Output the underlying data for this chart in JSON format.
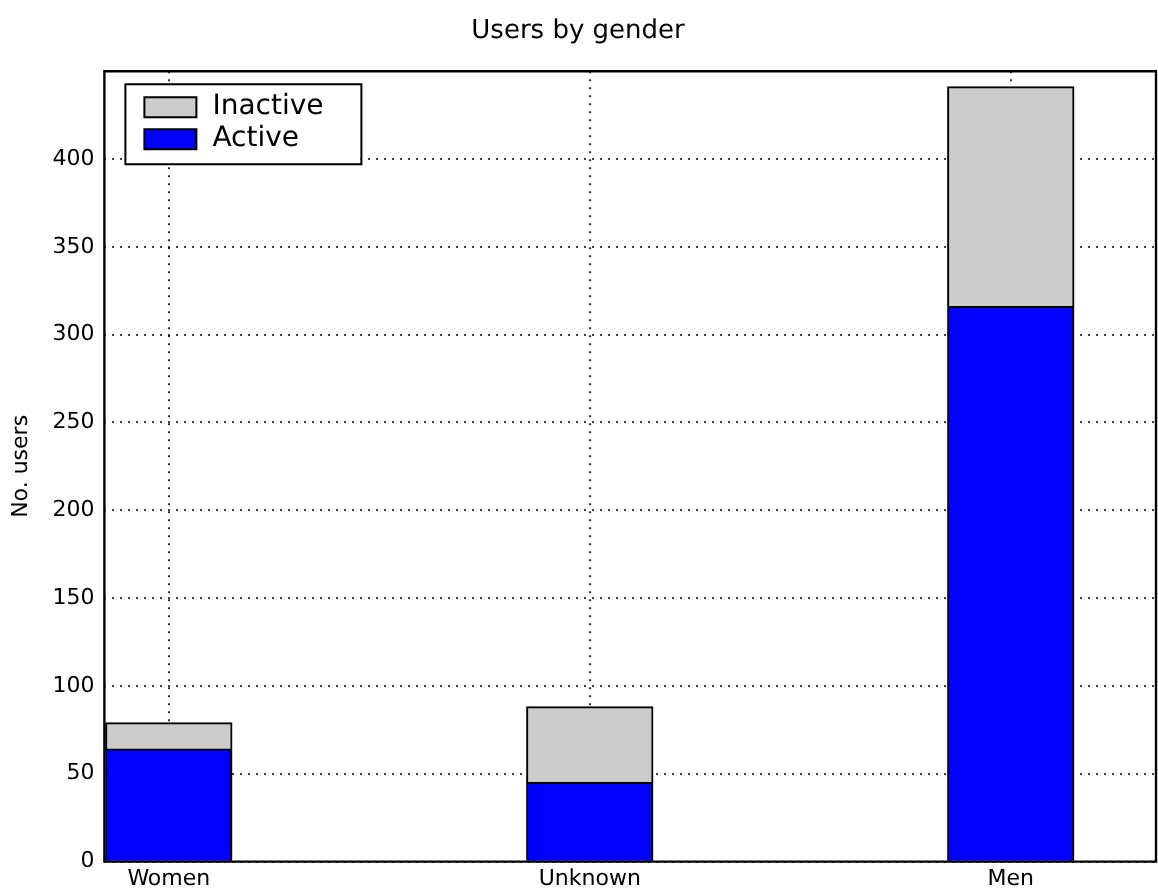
{
  "chart_data": {
    "type": "bar",
    "title": "Users by gender",
    "ylabel": "No. users",
    "categories": [
      "Women",
      "Unknown",
      "Men"
    ],
    "series": [
      {
        "name": "Active",
        "color": "#0000ff",
        "values": [
          64,
          45,
          316
        ]
      },
      {
        "name": "Inactive",
        "color": "#cccccc",
        "values": [
          15,
          43,
          125
        ]
      }
    ],
    "stacked": true,
    "ylim": [
      0,
      450
    ],
    "yticks": [
      0,
      50,
      100,
      150,
      200,
      250,
      300,
      350,
      400
    ],
    "grid": true,
    "legend": "top left"
  }
}
